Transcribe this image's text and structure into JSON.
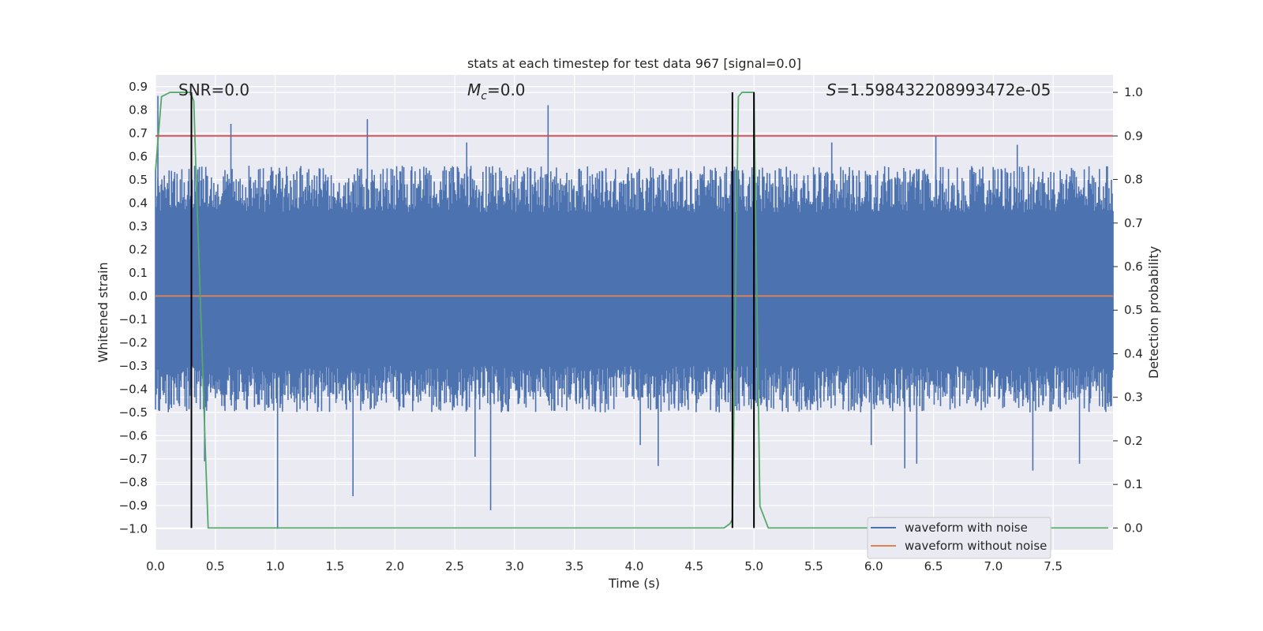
{
  "chart_data": {
    "type": "line",
    "title": "stats at each timestep for test data 967 [signal=0.0]",
    "xlabel": "Time (s)",
    "ylabel": "Whitened strain",
    "y2label": "Detection probability",
    "xlim": [
      0.0,
      8.0
    ],
    "ylim": [
      -1.09,
      0.95
    ],
    "y2lim": [
      -0.05,
      1.04
    ],
    "xticks": [
      0.0,
      0.5,
      1.0,
      1.5,
      2.0,
      2.5,
      3.0,
      3.5,
      4.0,
      4.5,
      5.0,
      5.5,
      6.0,
      6.5,
      7.0,
      7.5
    ],
    "xtick_labels": [
      "0.0",
      "0.5",
      "1.0",
      "1.5",
      "2.0",
      "2.5",
      "3.0",
      "3.5",
      "4.0",
      "4.5",
      "5.0",
      "5.5",
      "6.0",
      "6.5",
      "7.0",
      "7.5"
    ],
    "yticks": [
      0.9,
      0.8,
      0.7,
      0.6,
      0.5,
      0.4,
      0.3,
      0.2,
      0.1,
      0.0,
      -0.1,
      -0.2,
      -0.3,
      -0.4,
      -0.5,
      -0.6,
      -0.7,
      -0.8,
      -0.9,
      -1.0
    ],
    "ytick_labels": [
      "0.9",
      "0.8",
      "0.7",
      "0.6",
      "0.5",
      "0.4",
      "0.3",
      "0.2",
      "0.1",
      "0.0",
      "−0.1",
      "−0.2",
      "−0.3",
      "−0.4",
      "−0.5",
      "−0.6",
      "−0.7",
      "−0.8",
      "−0.9",
      "−1.0"
    ],
    "y2ticks": [
      1.0,
      0.9,
      0.8,
      0.7,
      0.6,
      0.5,
      0.4,
      0.3,
      0.2,
      0.1,
      0.0
    ],
    "y2tick_labels": [
      "1.0",
      "0.9",
      "0.8",
      "0.7",
      "0.6",
      "0.5",
      "0.4",
      "0.3",
      "0.2",
      "0.1",
      "0.0"
    ],
    "annotations": {
      "snr": "SNR=0.0",
      "mc_symbol": "M",
      "mc_sub": "c",
      "mc_value": "=0.0",
      "s_symbol": "S",
      "s_value": "=1.598432208993472e-05"
    },
    "legend": {
      "position": "lower-right",
      "entries": [
        "waveform with noise",
        "waveform without noise"
      ]
    },
    "series": [
      {
        "name": "waveform with noise",
        "color": "#4c72b0",
        "axis": "left",
        "noise": {
          "n": 1200,
          "seed": 967,
          "upper_base": 0.46,
          "upper_spread": 0.1,
          "lower_base": -0.4,
          "lower_spread": 0.1
        },
        "spikes": [
          {
            "x": 0.02,
            "y": 0.86
          },
          {
            "x": 0.63,
            "y": 0.74
          },
          {
            "x": 1.77,
            "y": 0.76
          },
          {
            "x": 3.28,
            "y": 0.82
          },
          {
            "x": 6.52,
            "y": 0.69
          },
          {
            "x": 2.6,
            "y": 0.66
          },
          {
            "x": 5.65,
            "y": 0.66
          },
          {
            "x": 7.2,
            "y": 0.65
          },
          {
            "x": 1.02,
            "y": -1.0
          },
          {
            "x": 2.8,
            "y": -0.92
          },
          {
            "x": 1.65,
            "y": -0.86
          },
          {
            "x": 7.33,
            "y": -0.75
          },
          {
            "x": 6.26,
            "y": -0.74
          },
          {
            "x": 6.36,
            "y": -0.72
          },
          {
            "x": 0.41,
            "y": -0.71
          },
          {
            "x": 4.2,
            "y": -0.73
          },
          {
            "x": 7.72,
            "y": -0.72
          },
          {
            "x": 2.67,
            "y": -0.69
          },
          {
            "x": 5.98,
            "y": -0.64
          },
          {
            "x": 4.05,
            "y": -0.64
          }
        ]
      },
      {
        "name": "waveform without noise",
        "color": "#dd8452",
        "axis": "left",
        "x": [
          0.0,
          8.0
        ],
        "values": [
          0.0,
          0.0
        ]
      },
      {
        "name": "detection probability",
        "color": "#55a868",
        "axis": "right",
        "x": [
          0.0,
          0.05,
          0.12,
          0.29,
          0.32,
          0.34,
          0.39,
          0.42,
          0.44,
          4.75,
          4.8,
          4.82,
          4.87,
          4.9,
          4.94,
          5.0,
          5.05,
          5.12,
          7.96
        ],
        "values": [
          0.82,
          0.99,
          1.0,
          1.0,
          0.98,
          0.8,
          0.4,
          0.15,
          0.0,
          0.0,
          0.01,
          0.02,
          0.99,
          1.0,
          1.0,
          1.0,
          0.05,
          0.0,
          0.0
        ]
      },
      {
        "name": "threshold",
        "color": "#c44e52",
        "axis": "right",
        "x": [
          0.0,
          8.0
        ],
        "values": [
          0.9,
          0.9
        ]
      }
    ],
    "markers": [
      {
        "name": "peak-marker-1",
        "x": 0.3,
        "y_from": 0.0,
        "y_to": 1.0,
        "color": "#000000",
        "axis": "right"
      },
      {
        "name": "peak-marker-2",
        "x": 4.82,
        "y_from": 0.0,
        "y_to": 1.0,
        "color": "#000000",
        "axis": "right"
      },
      {
        "name": "peak-marker-3",
        "x": 5.0,
        "y_from": 0.0,
        "y_to": 1.0,
        "color": "#000000",
        "axis": "right"
      }
    ],
    "style": {
      "plot_bg": "#eaeaf2",
      "grid": true,
      "grid_color": "#ffffff"
    }
  }
}
